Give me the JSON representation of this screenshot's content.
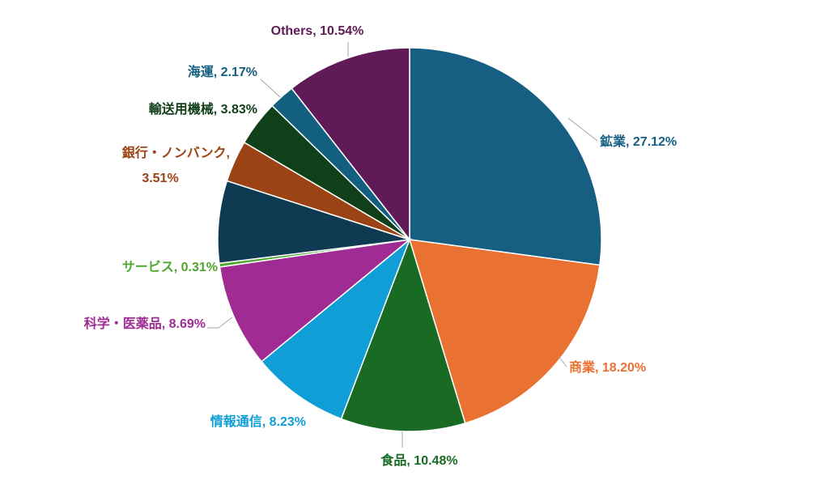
{
  "chart_data": {
    "type": "pie",
    "title": "",
    "slices": [
      {
        "label": "鉱業, 27.12%",
        "value": 27.12,
        "color": "#175f82",
        "label_color": "#175f82"
      },
      {
        "label": "商業, 18.20%",
        "value": 18.2,
        "color": "#e97132",
        "label_color": "#e97132"
      },
      {
        "label": "食品, 10.48%",
        "value": 10.48,
        "color": "#196b24",
        "label_color": "#196b24"
      },
      {
        "label": "情報通信, 8.23%",
        "value": 8.23,
        "color": "#0f9ed5",
        "label_color": "#0f9ed5"
      },
      {
        "label": "科学・医薬品, 8.69%",
        "value": 8.69,
        "color": "#a02b93",
        "label_color": "#a02b93"
      },
      {
        "label": "サービス, 0.31%",
        "value": 0.31,
        "color": "#4ea72e",
        "label_color": "#4ea72e"
      },
      {
        "label": "",
        "value": 6.92,
        "color": "#0e3a52",
        "label_color": "#0e3a52"
      },
      {
        "label": "銀行・ノンバンク, 3.51%",
        "value": 3.51,
        "color": "#9b4315",
        "label_color": "#9b4315"
      },
      {
        "label": "輸送用機械, 3.83%",
        "value": 3.83,
        "color": "#10401a",
        "label_color": "#10401a"
      },
      {
        "label": "海運, 2.17%",
        "value": 2.17,
        "color": "#135f80",
        "label_color": "#135f80"
      },
      {
        "label": "Others, 10.54%",
        "value": 10.54,
        "color": "#601a58",
        "label_color": "#601a58"
      }
    ],
    "start_angle": "12 o'clock",
    "direction": "clockwise",
    "legend": "none",
    "data_labels": "outside with leader lines"
  }
}
